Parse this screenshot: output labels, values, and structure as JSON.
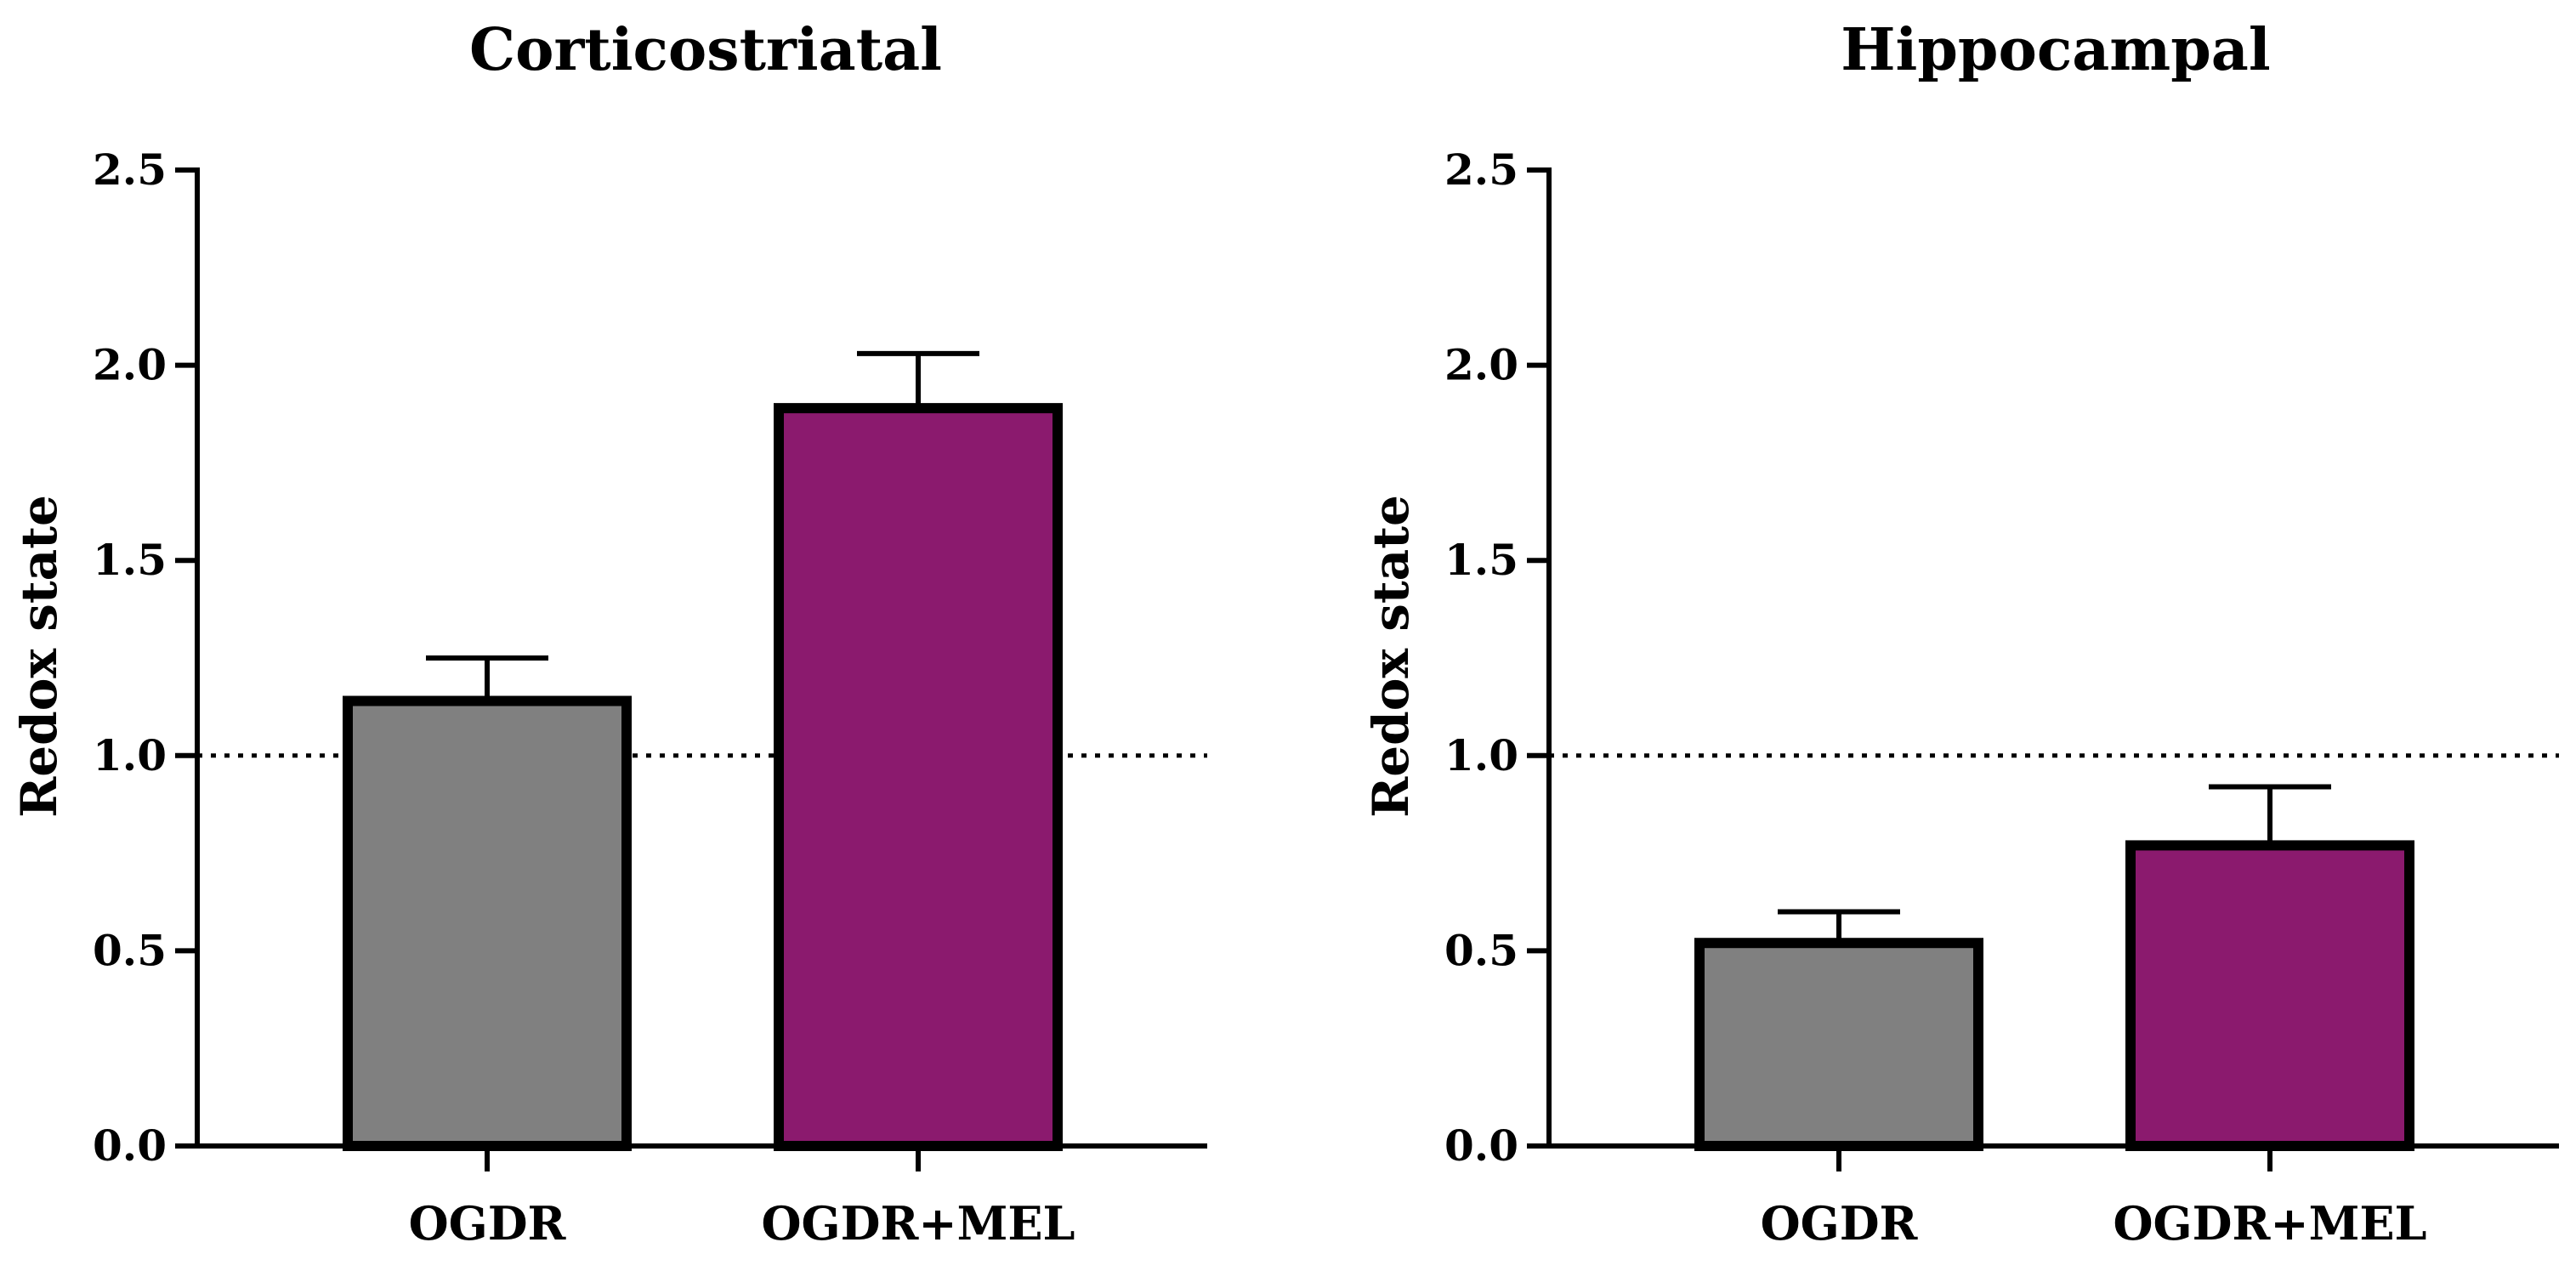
{
  "chart_data": [
    {
      "type": "bar",
      "title": "Corticostriatal",
      "ylabel": "Redox state",
      "xlabel": "",
      "ylim": [
        0,
        2.5
      ],
      "yticks": [
        "0.0",
        "0.5",
        "1.0",
        "1.5",
        "2.0",
        "2.5"
      ],
      "categories": [
        "OGDR",
        "OGDR+MEL"
      ],
      "values": [
        1.14,
        1.89
      ],
      "errors": [
        0.11,
        0.14
      ],
      "colors": [
        "#808080",
        "#8b1a6e"
      ],
      "reference_line": 1.0,
      "grid": false
    },
    {
      "type": "bar",
      "title": "Hippocampal",
      "ylabel": "Redox state",
      "xlabel": "",
      "ylim": [
        0,
        2.5
      ],
      "yticks": [
        "0.0",
        "0.5",
        "1.0",
        "1.5",
        "2.0",
        "2.5"
      ],
      "categories": [
        "OGDR",
        "OGDR+MEL"
      ],
      "values": [
        0.52,
        0.77
      ],
      "errors": [
        0.08,
        0.15
      ],
      "colors": [
        "#808080",
        "#8b1a6e"
      ],
      "reference_line": 1.0,
      "grid": false
    }
  ]
}
